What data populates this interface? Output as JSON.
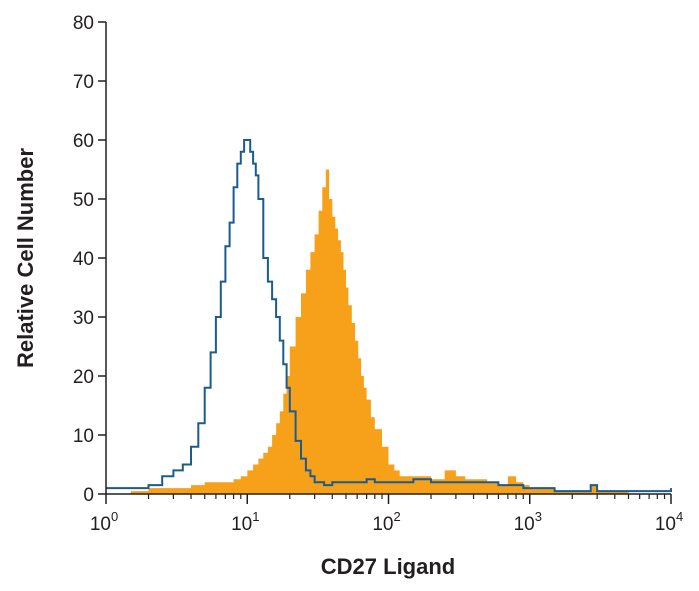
{
  "chart_data": {
    "type": "area",
    "title": "",
    "xlabel": "CD27 Ligand",
    "ylabel": "Relative Cell Number",
    "x_scale": "log",
    "xlim": [
      1,
      10000
    ],
    "ylim": [
      0,
      80
    ],
    "y_ticks": [
      "0",
      "10",
      "20",
      "30",
      "40",
      "50",
      "60",
      "70",
      "80"
    ],
    "x_ticks": [
      {
        "base": "10",
        "exp": "0"
      },
      {
        "base": "10",
        "exp": "1"
      },
      {
        "base": "10",
        "exp": "2"
      },
      {
        "base": "10",
        "exp": "3"
      },
      {
        "base": "10",
        "exp": "4"
      }
    ],
    "grid": false,
    "legend": "none",
    "series": [
      {
        "style": "filled",
        "color": "#f7a11a",
        "x": [
          1.0,
          1.5,
          2.0,
          3.0,
          4.0,
          5.0,
          6.0,
          7.0,
          8.0,
          9.0,
          10.0,
          11.0,
          12.0,
          13.0,
          14.0,
          15.0,
          16.0,
          17.0,
          18.0,
          19.0,
          20.0,
          22.0,
          24.0,
          26.0,
          28.0,
          30.0,
          32.0,
          34.0,
          36.0,
          38.0,
          40.0,
          42.0,
          44.0,
          46.0,
          48.0,
          50.0,
          52.0,
          55.0,
          58.0,
          61.0,
          64.0,
          67.0,
          70.0,
          75.0,
          80.0,
          90.0,
          100.0,
          110.0,
          120.0,
          130.0,
          150.0,
          180.0,
          200.0,
          250.0,
          300.0,
          350.0,
          400.0,
          500.0,
          600.0,
          700.0,
          800.0,
          900.0,
          1000.0,
          1500.0,
          2000.0,
          2500.0,
          2700.0,
          3000.0,
          5000.0,
          10000.0
        ],
        "y": [
          0,
          0.5,
          1,
          1,
          1.5,
          2,
          2,
          2,
          2.5,
          3,
          4,
          5,
          6,
          7,
          8,
          10,
          12,
          14,
          17,
          20,
          25,
          30,
          34,
          38,
          41,
          44,
          48,
          52,
          55,
          50,
          47,
          45,
          43,
          41,
          38,
          35,
          32,
          29,
          26,
          23,
          20,
          18,
          16,
          13,
          11,
          8,
          5,
          4,
          3,
          3,
          3,
          3,
          2.5,
          4,
          3,
          2.5,
          2.5,
          2,
          1.5,
          3,
          2,
          1.5,
          1,
          0.5,
          0.5,
          0.5,
          1.5,
          0.5,
          0,
          0
        ]
      },
      {
        "style": "outline",
        "color": "#1b5c8f",
        "x": [
          1.0,
          1.5,
          2.0,
          2.5,
          3.0,
          3.5,
          4.0,
          4.5,
          5.0,
          5.5,
          6.0,
          6.5,
          7.0,
          7.5,
          8.0,
          8.5,
          9.0,
          9.5,
          10.0,
          10.5,
          11.0,
          11.5,
          12.0,
          13.0,
          14.0,
          15.0,
          16.0,
          17.0,
          18.0,
          19.0,
          20.0,
          22.0,
          24.0,
          26.0,
          28.0,
          30.0,
          35.0,
          40.0,
          50.0,
          60.0,
          70.0,
          80.0,
          100.0,
          120.0,
          150.0,
          200.0,
          250.0,
          300.0,
          400.0,
          500.0,
          600.0,
          700.0,
          800.0,
          900.0,
          1000.0,
          1500.0,
          2000.0,
          2500.0,
          2700.0,
          3000.0,
          5000.0,
          9500.0,
          10000.0
        ],
        "y": [
          1,
          1,
          1.5,
          3,
          4,
          5,
          8,
          12,
          18,
          24,
          30,
          36,
          42,
          46,
          52,
          56,
          58,
          60,
          60,
          58,
          56,
          54,
          50,
          40,
          36,
          33,
          30,
          26,
          22,
          18,
          14,
          9,
          6,
          4,
          3,
          2,
          1.5,
          2,
          2,
          2,
          2.5,
          2,
          2,
          2,
          2.5,
          2,
          2,
          2,
          2,
          2,
          1.5,
          1.5,
          1.5,
          1,
          1,
          0.5,
          0.5,
          0.5,
          1.5,
          0.5,
          0.5,
          0.5,
          1
        ]
      }
    ]
  }
}
